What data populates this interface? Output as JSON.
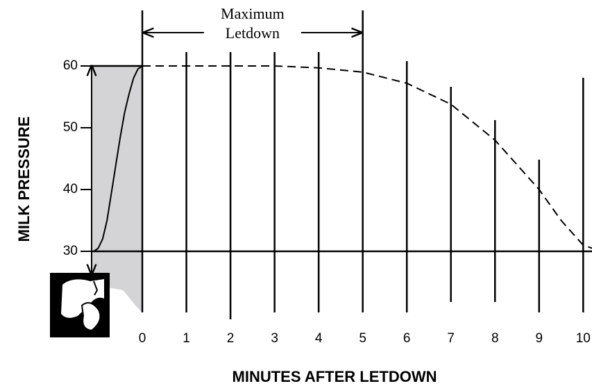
{
  "chart_data": {
    "type": "line",
    "y_label": "MILK PRESSURE",
    "x_label": "MINUTES AFTER LETDOWN",
    "annotation": [
      "Maximum",
      "Letdown"
    ],
    "annotation_span": [
      0,
      5
    ],
    "xlim": [
      -1.15,
      10.2
    ],
    "xticks": [
      0,
      1,
      2,
      3,
      4,
      5,
      6,
      7,
      8,
      9,
      10
    ],
    "ylim": [
      30,
      60
    ],
    "yticks": [
      30,
      40,
      50,
      60
    ],
    "series": [
      {
        "style": "solid",
        "color": "#000000",
        "x": [
          -1.1,
          -1.0,
          -0.9,
          -0.8,
          -0.7,
          -0.6,
          -0.5,
          -0.4,
          -0.3,
          -0.2,
          -0.1,
          0
        ],
        "values": [
          30,
          30.5,
          32,
          35,
          39.5,
          44,
          48.5,
          52.5,
          55.5,
          58,
          59.5,
          60
        ]
      },
      {
        "style": "dashed",
        "color": "#000000",
        "x": [
          0,
          1,
          2,
          3,
          4,
          5,
          6,
          7,
          8,
          9,
          9.5,
          10,
          10.2
        ],
        "values": [
          60,
          60,
          60,
          60,
          59.7,
          59,
          57.2,
          53.8,
          48,
          40,
          35,
          31,
          30.5
        ]
      }
    ]
  }
}
